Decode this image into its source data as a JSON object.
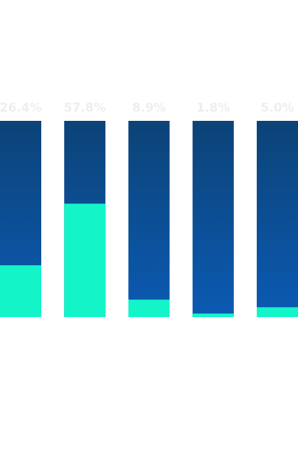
{
  "chart_data": {
    "type": "bar",
    "subtype": "percent-fill",
    "categories": [
      "",
      "",
      "",
      "",
      ""
    ],
    "values": [
      26.4,
      57.8,
      8.9,
      1.8,
      5.0
    ],
    "data_labels": [
      "26.4%",
      "57.8%",
      "8.9%",
      "1.8%",
      "5.0%"
    ],
    "ylim": [
      0,
      100
    ],
    "title": "",
    "xlabel": "",
    "ylabel": "",
    "grid": false,
    "legend": "none"
  },
  "colors": {
    "fill": "#13f5c8",
    "track_top": "#0c4377",
    "track_bottom": "#0b5ab3",
    "label": "#eeeeee",
    "background": "#ffffff"
  }
}
